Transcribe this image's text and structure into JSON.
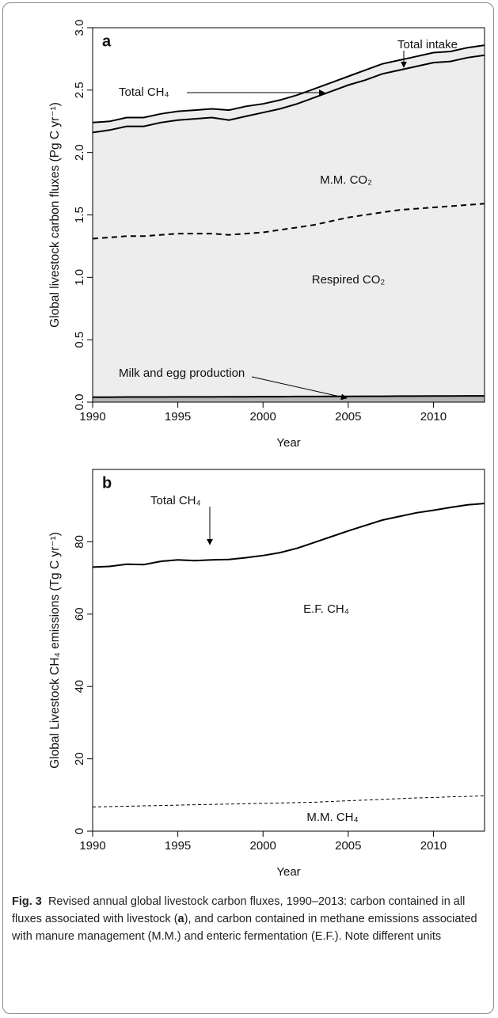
{
  "chart_data": [
    {
      "type": "area",
      "panel_label": "a",
      "y_label": "Global livestock carbon fluxes (Pg C yr⁻¹)",
      "x_label": "Year",
      "x": [
        1990,
        1991,
        1992,
        1993,
        1994,
        1995,
        1996,
        1997,
        1998,
        1999,
        2000,
        2001,
        2002,
        2003,
        2004,
        2005,
        2006,
        2007,
        2008,
        2009,
        2010,
        2011,
        2012,
        2013
      ],
      "xlim": [
        1990,
        2013
      ],
      "xticks": [
        1990,
        1995,
        2000,
        2005,
        2010
      ],
      "ylim": [
        0,
        3
      ],
      "yticks": [
        {
          "value": 0,
          "label": "0.0"
        },
        0.5,
        {
          "value": 1,
          "label": "1.0"
        },
        1.5,
        {
          "value": 2,
          "label": "2.0"
        },
        2.5,
        {
          "value": 3,
          "label": "3.0"
        }
      ],
      "series": [
        {
          "color": "#000000",
          "fill": "#ededed",
          "values": [
            2.24,
            2.25,
            2.28,
            2.28,
            2.31,
            2.33,
            2.34,
            2.35,
            2.34,
            2.37,
            2.39,
            2.42,
            2.46,
            2.51,
            2.56,
            2.61,
            2.66,
            2.71,
            2.74,
            2.77,
            2.8,
            2.81,
            2.84,
            2.86
          ]
        },
        {
          "color": "#000000",
          "values": [
            2.16,
            2.18,
            2.21,
            2.21,
            2.24,
            2.26,
            2.27,
            2.28,
            2.26,
            2.29,
            2.32,
            2.35,
            2.39,
            2.44,
            2.49,
            2.54,
            2.58,
            2.63,
            2.66,
            2.69,
            2.72,
            2.73,
            2.76,
            2.78
          ]
        },
        {
          "color": "#000000",
          "dashed": true,
          "values": [
            1.31,
            1.32,
            1.33,
            1.33,
            1.34,
            1.35,
            1.35,
            1.35,
            1.34,
            1.35,
            1.36,
            1.38,
            1.4,
            1.42,
            1.45,
            1.48,
            1.5,
            1.52,
            1.54,
            1.55,
            1.56,
            1.57,
            1.58,
            1.59
          ]
        },
        {
          "color": "#000000",
          "fill": "#b3b3b3",
          "values": [
            0.04,
            0.04,
            0.041,
            0.041,
            0.041,
            0.042,
            0.042,
            0.042,
            0.043,
            0.043,
            0.044,
            0.044,
            0.045,
            0.045,
            0.046,
            0.046,
            0.047,
            0.047,
            0.048,
            0.048,
            0.049,
            0.049,
            0.05,
            0.05
          ]
        }
      ],
      "annotations": [
        "Total intake",
        "Total CH₄",
        "M.M. CO₂",
        "Respired CO₂",
        "Milk and egg production"
      ]
    },
    {
      "type": "line",
      "panel_label": "b",
      "y_label": "Global Livestock CH₄ emissions (Tg C yr⁻¹)",
      "x_label": "Year",
      "x": [
        1990,
        1991,
        1992,
        1993,
        1994,
        1995,
        1996,
        1997,
        1998,
        1999,
        2000,
        2001,
        2002,
        2003,
        2004,
        2005,
        2006,
        2007,
        2008,
        2009,
        2010,
        2011,
        2012,
        2013
      ],
      "xlim": [
        1990,
        2013
      ],
      "xticks": [
        1990,
        1995,
        2000,
        2005,
        2010
      ],
      "ylim": [
        0,
        100
      ],
      "yticks": [
        0,
        20,
        40,
        60,
        80
      ],
      "series": [
        {
          "color": "#000000",
          "values": [
            73,
            73.2,
            73.8,
            73.7,
            74.6,
            75,
            74.8,
            75,
            75.1,
            75.6,
            76.2,
            77,
            78.2,
            79.8,
            81.4,
            83,
            84.5,
            86,
            87,
            88,
            88.7,
            89.5,
            90.2,
            90.6
          ]
        },
        {
          "color": "#000000",
          "dashed": true,
          "thin": true,
          "values": [
            6.7,
            6.8,
            6.9,
            7.0,
            7.1,
            7.2,
            7.3,
            7.4,
            7.5,
            7.6,
            7.7,
            7.8,
            7.9,
            8.0,
            8.2,
            8.4,
            8.6,
            8.8,
            9.0,
            9.2,
            9.3,
            9.5,
            9.6,
            9.8
          ]
        }
      ],
      "annotations": [
        "Total CH₄",
        "E.F. CH₄",
        "M.M. CH₄"
      ]
    }
  ],
  "caption": {
    "label": "Fig. 3",
    "text_1": "Revised annual global livestock carbon fluxes, 1990–2013: carbon contained in all fluxes associated with livestock (",
    "bold": "a",
    "text_2": "), and carbon contained in methane emissions associated with manure management (M.M.) and enteric fermentation (E.F.). Note different units"
  }
}
